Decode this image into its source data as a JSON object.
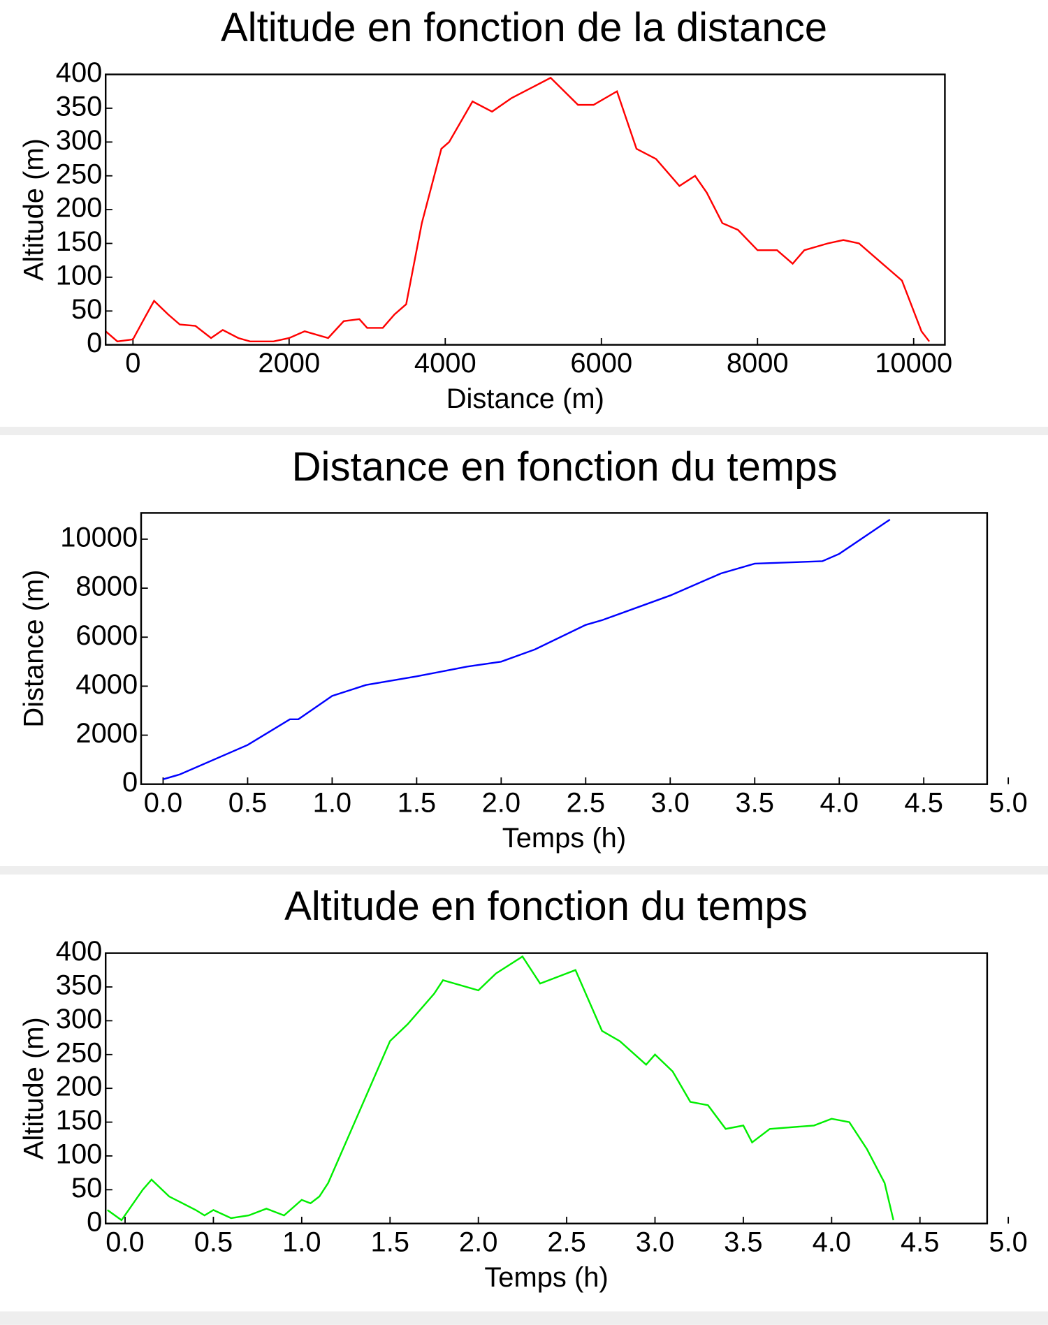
{
  "chart_data": [
    {
      "type": "line",
      "title": "Altitude en fonction de la distance",
      "x_label": "Distance (m)",
      "y_label": "Altitude (m)",
      "color": "#ff0000",
      "x": [
        -350,
        -200,
        0,
        150,
        270,
        450,
        600,
        800,
        1000,
        1150,
        1350,
        1500,
        1800,
        2000,
        2200,
        2500,
        2700,
        2900,
        3000,
        3200,
        3350,
        3500,
        3700,
        3950,
        4050,
        4350,
        4600,
        4850,
        5100,
        5350,
        5700,
        5900,
        6200,
        6450,
        6700,
        7000,
        7200,
        7350,
        7550,
        7750,
        8000,
        8250,
        8450,
        8600,
        8900,
        9100,
        9300,
        9600,
        9850,
        10100,
        10200
      ],
      "values": [
        20,
        5,
        8,
        40,
        65,
        45,
        30,
        28,
        10,
        22,
        10,
        5,
        5,
        10,
        20,
        10,
        35,
        38,
        25,
        25,
        45,
        60,
        180,
        290,
        300,
        360,
        345,
        365,
        380,
        395,
        355,
        355,
        375,
        290,
        275,
        235,
        250,
        225,
        180,
        170,
        140,
        140,
        120,
        140,
        150,
        155,
        150,
        120,
        95,
        20,
        5
      ],
      "xlim": [
        -350,
        10400
      ],
      "ylim": [
        0,
        400
      ],
      "xticks": [
        0,
        2000,
        4000,
        6000,
        8000,
        10000
      ],
      "yticks": [
        0,
        50,
        100,
        150,
        200,
        250,
        300,
        350,
        400
      ]
    },
    {
      "type": "line",
      "title": "Distance en fonction du temps",
      "x_label": "Temps (h)",
      "y_label": "Distance (m)",
      "color": "#0000ff",
      "x": [
        0,
        0.1,
        0.5,
        0.75,
        0.8,
        1.0,
        1.2,
        1.5,
        1.8,
        2.0,
        2.2,
        2.5,
        2.6,
        3.0,
        3.3,
        3.5,
        3.9,
        4.0,
        4.3
      ],
      "values": [
        200,
        400,
        1600,
        2650,
        2650,
        3600,
        4050,
        4400,
        4800,
        5000,
        5500,
        6500,
        6700,
        7700,
        8600,
        9000,
        9100,
        9400,
        10800
      ],
      "xlim": [
        -0.13,
        5.0
      ],
      "ylim": [
        0,
        11070
      ],
      "xticks": [
        {
          "value": 0,
          "label": "0.0"
        },
        0.5,
        {
          "value": 1,
          "label": "1.0"
        },
        1.5,
        {
          "value": 2,
          "label": "2.0"
        },
        2.5,
        {
          "value": 3,
          "label": "3.0"
        },
        3.5,
        {
          "value": 4,
          "label": "4.0"
        },
        4.5,
        {
          "value": 5,
          "label": "5.0"
        }
      ],
      "yticks": [
        0,
        2000,
        4000,
        6000,
        8000,
        10000
      ]
    },
    {
      "type": "line",
      "title": "Altitude en fonction du temps",
      "x_label": "Temps (h)",
      "y_label": "Altitude (m)",
      "color": "#00ee00",
      "x": [
        -0.1,
        -0.02,
        0.1,
        0.15,
        0.25,
        0.4,
        0.45,
        0.5,
        0.6,
        0.7,
        0.8,
        0.9,
        1.0,
        1.05,
        1.1,
        1.15,
        1.3,
        1.5,
        1.6,
        1.75,
        1.8,
        2.0,
        2.1,
        2.25,
        2.35,
        2.45,
        2.55,
        2.7,
        2.8,
        2.95,
        3.0,
        3.1,
        3.2,
        3.3,
        3.4,
        3.5,
        3.55,
        3.65,
        3.9,
        4.0,
        4.1,
        4.2,
        4.3,
        4.35
      ],
      "values": [
        20,
        5,
        50,
        65,
        40,
        20,
        12,
        20,
        8,
        12,
        22,
        12,
        35,
        30,
        40,
        60,
        150,
        270,
        295,
        340,
        360,
        345,
        370,
        395,
        355,
        365,
        375,
        285,
        270,
        235,
        250,
        225,
        180,
        175,
        140,
        145,
        120,
        140,
        145,
        155,
        150,
        110,
        60,
        5
      ],
      "xlim": [
        -0.11,
        5.0
      ],
      "ylim": [
        0,
        400
      ],
      "xticks": [
        {
          "value": 0,
          "label": "0.0"
        },
        0.5,
        {
          "value": 1,
          "label": "1.0"
        },
        1.5,
        {
          "value": 2,
          "label": "2.0"
        },
        2.5,
        {
          "value": 3,
          "label": "3.0"
        },
        3.5,
        {
          "value": 4,
          "label": "4.0"
        },
        4.5,
        {
          "value": 5,
          "label": "5.0"
        }
      ],
      "yticks": [
        0,
        50,
        100,
        150,
        200,
        250,
        300,
        350,
        400
      ]
    }
  ]
}
